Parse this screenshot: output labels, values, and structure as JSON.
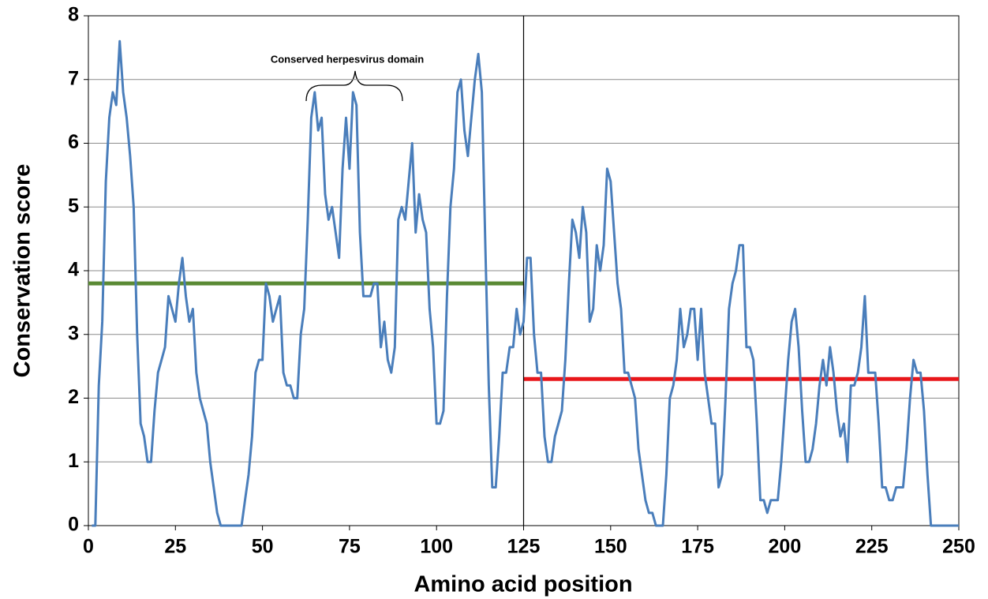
{
  "chart_data": {
    "type": "line",
    "annotation": "Conserved herpesvirus domain",
    "x_label": "Amino acid position",
    "y_label": "Conservation score",
    "x": [
      1,
      2,
      3,
      4,
      5,
      6,
      7,
      8,
      9,
      10,
      11,
      12,
      13,
      14,
      15,
      16,
      17,
      18,
      19,
      20,
      21,
      22,
      23,
      24,
      25,
      26,
      27,
      28,
      29,
      30,
      31,
      32,
      33,
      34,
      35,
      36,
      37,
      38,
      39,
      40,
      41,
      42,
      43,
      44,
      45,
      46,
      47,
      48,
      49,
      50,
      51,
      52,
      53,
      54,
      55,
      56,
      57,
      58,
      59,
      60,
      61,
      62,
      63,
      64,
      65,
      66,
      67,
      68,
      69,
      70,
      71,
      72,
      73,
      74,
      75,
      76,
      77,
      78,
      79,
      80,
      81,
      82,
      83,
      84,
      85,
      86,
      87,
      88,
      89,
      90,
      91,
      92,
      93,
      94,
      95,
      96,
      97,
      98,
      99,
      100,
      101,
      102,
      103,
      104,
      105,
      106,
      107,
      108,
      109,
      110,
      111,
      112,
      113,
      114,
      115,
      116,
      117,
      118,
      119,
      120,
      121,
      122,
      123,
      124,
      125,
      126,
      127,
      128,
      129,
      130,
      131,
      132,
      133,
      134,
      135,
      136,
      137,
      138,
      139,
      140,
      141,
      142,
      143,
      144,
      145,
      146,
      147,
      148,
      149,
      150,
      151,
      152,
      153,
      154,
      155,
      156,
      157,
      158,
      159,
      160,
      161,
      162,
      163,
      164,
      165,
      166,
      167,
      168,
      169,
      170,
      171,
      172,
      173,
      174,
      175,
      176,
      177,
      178,
      179,
      180,
      181,
      182,
      183,
      184,
      185,
      186,
      187,
      188,
      189,
      190,
      191,
      192,
      193,
      194,
      195,
      196,
      197,
      198,
      199,
      200,
      201,
      202,
      203,
      204,
      205,
      206,
      207,
      208,
      209,
      210,
      211,
      212,
      213,
      214,
      215,
      216,
      217,
      218,
      219,
      220,
      221,
      222,
      223,
      224,
      225,
      226,
      227,
      228,
      229,
      230,
      231,
      232,
      233,
      234,
      235,
      236,
      237,
      238,
      239,
      240,
      241,
      242,
      243,
      244,
      245,
      246,
      247,
      248,
      249,
      250
    ],
    "series": [
      {
        "color": "#4a7ebb",
        "values": [
          0,
          0,
          2.2,
          3.2,
          5.4,
          6.4,
          6.8,
          6.6,
          7.6,
          6.8,
          6.4,
          5.8,
          5.0,
          3.0,
          1.6,
          1.4,
          1.0,
          1.0,
          1.8,
          2.4,
          2.6,
          2.8,
          3.6,
          3.4,
          3.2,
          3.8,
          4.2,
          3.6,
          3.2,
          3.4,
          2.4,
          2.0,
          1.8,
          1.6,
          1.0,
          0.6,
          0.2,
          0,
          0,
          0,
          0,
          0,
          0,
          0,
          0.4,
          0.8,
          1.4,
          2.4,
          2.6,
          2.6,
          3.8,
          3.6,
          3.2,
          3.4,
          3.6,
          2.4,
          2.2,
          2.2,
          2.0,
          2.0,
          3.0,
          3.4,
          4.8,
          6.4,
          6.8,
          6.2,
          6.4,
          5.2,
          4.8,
          5.0,
          4.6,
          4.2,
          5.6,
          6.4,
          5.6,
          6.8,
          6.6,
          4.6,
          3.6,
          3.6,
          3.6,
          3.8,
          3.8,
          2.8,
          3.2,
          2.6,
          2.4,
          2.8,
          4.8,
          5.0,
          4.8,
          5.4,
          6.0,
          4.6,
          5.2,
          4.8,
          4.6,
          3.4,
          2.8,
          1.6,
          1.6,
          1.8,
          3.6,
          5.0,
          5.6,
          6.8,
          7.0,
          6.2,
          5.8,
          6.4,
          7.0,
          7.4,
          6.8,
          4.4,
          2.2,
          0.6,
          0.6,
          1.4,
          2.4,
          2.4,
          2.8,
          2.8,
          3.4,
          3.0,
          3.2,
          4.2,
          4.2,
          3.0,
          2.4,
          2.4,
          1.4,
          1.0,
          1.0,
          1.4,
          1.6,
          1.8,
          2.6,
          3.8,
          4.8,
          4.6,
          4.2,
          5.0,
          4.6,
          3.2,
          3.4,
          4.4,
          4.0,
          4.4,
          5.6,
          5.4,
          4.6,
          3.8,
          3.4,
          2.4,
          2.4,
          2.2,
          2.0,
          1.2,
          0.8,
          0.4,
          0.2,
          0.2,
          0,
          0,
          0,
          0.8,
          2.0,
          2.2,
          2.6,
          3.4,
          2.8,
          3.0,
          3.4,
          3.4,
          2.6,
          3.4,
          2.4,
          2.0,
          1.6,
          1.6,
          0.6,
          0.8,
          2.0,
          3.4,
          3.8,
          4.0,
          4.4,
          4.4,
          2.8,
          2.8,
          2.6,
          1.6,
          0.4,
          0.4,
          0.2,
          0.4,
          0.4,
          0.4,
          1.0,
          1.8,
          2.6,
          3.2,
          3.4,
          2.8,
          1.8,
          1.0,
          1.0,
          1.2,
          1.6,
          2.2,
          2.6,
          2.2,
          2.8,
          2.4,
          1.8,
          1.4,
          1.6,
          1.0,
          2.2,
          2.2,
          2.4,
          2.8,
          3.6,
          2.4,
          2.4,
          2.4,
          1.6,
          0.6,
          0.6,
          0.4,
          0.4,
          0.6,
          0.6,
          0.6,
          1.2,
          2.0,
          2.6,
          2.4,
          2.4,
          1.8,
          0.8,
          0,
          0,
          0,
          0,
          0,
          0,
          0,
          0,
          0
        ]
      }
    ],
    "reference_lines": [
      {
        "value": 3.8,
        "xrange": [
          0,
          125
        ],
        "color": "#5a8a34"
      },
      {
        "value": 2.3,
        "xrange": [
          125,
          250
        ],
        "color": "#e8161a"
      }
    ],
    "divider_x": 125,
    "xlim": [
      0,
      250
    ],
    "xticks": [
      0,
      25,
      50,
      75,
      100,
      125,
      150,
      175,
      200,
      225,
      250
    ],
    "ylim": [
      0,
      8
    ],
    "yticks": [
      0,
      1,
      2,
      3,
      4,
      5,
      6,
      7,
      8
    ],
    "grid": true
  }
}
